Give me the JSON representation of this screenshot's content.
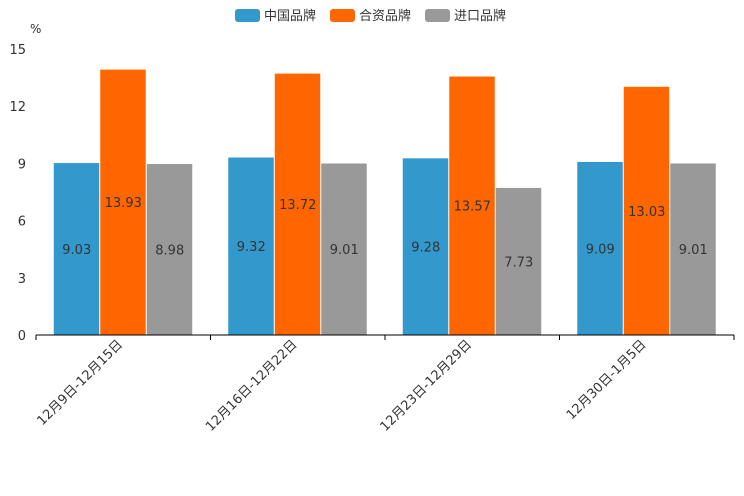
{
  "chart_data": {
    "type": "bar",
    "title": "",
    "ylabel": "%",
    "ylim": [
      0,
      15
    ],
    "yticks": [
      0,
      3,
      6,
      9,
      12,
      15
    ],
    "categories": [
      "12月9日-12月15日",
      "12月16日-12月22日",
      "12月23日-12月29日",
      "12月30日-1月5日"
    ],
    "series": [
      {
        "name": "中国品牌",
        "color": "#3399cc",
        "values": [
          9.03,
          9.32,
          9.28,
          9.09
        ]
      },
      {
        "name": "合资品牌",
        "color": "#ff6600",
        "values": [
          13.93,
          13.72,
          13.57,
          13.03
        ]
      },
      {
        "name": "进口品牌",
        "color": "#999999",
        "values": [
          8.98,
          9.01,
          7.73,
          9.01
        ]
      }
    ],
    "legend_position": "top-center",
    "grid": false
  }
}
